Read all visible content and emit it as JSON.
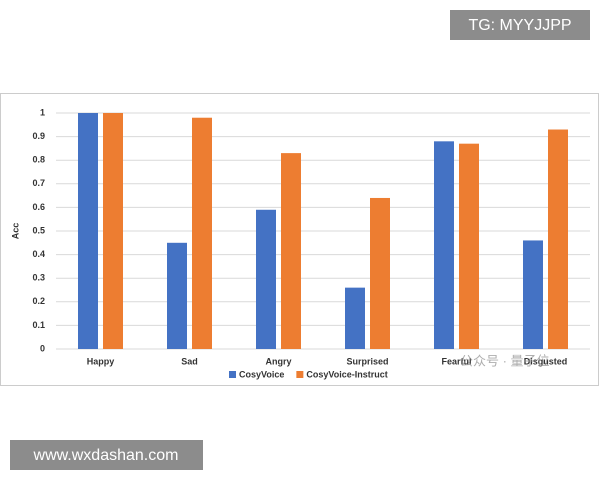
{
  "chart_data": {
    "type": "bar",
    "y_label": "Acc",
    "categories": [
      "Happy",
      "Sad",
      "Angry",
      "Surprised",
      "Fearful",
      "Disgusted"
    ],
    "series": [
      {
        "name": "CosyVoice",
        "color": "#4472c4",
        "values": [
          1.0,
          0.45,
          0.59,
          0.26,
          0.88,
          0.46
        ]
      },
      {
        "name": "CosyVoice-Instruct",
        "color": "#ed7d31",
        "values": [
          1.0,
          0.98,
          0.83,
          0.64,
          0.87,
          0.93
        ]
      }
    ],
    "ylim": [
      0,
      1
    ],
    "yticks": [
      0,
      0.1,
      0.2,
      0.3,
      0.4,
      0.5,
      0.6,
      0.7,
      0.8,
      0.9,
      1
    ],
    "grid": true,
    "legend": "bottom"
  },
  "overlay": {
    "top_right": "TG: MYYJJPP",
    "bottom_left": "www.wxdashan.com",
    "watermark": "公众号 · 量子位"
  }
}
